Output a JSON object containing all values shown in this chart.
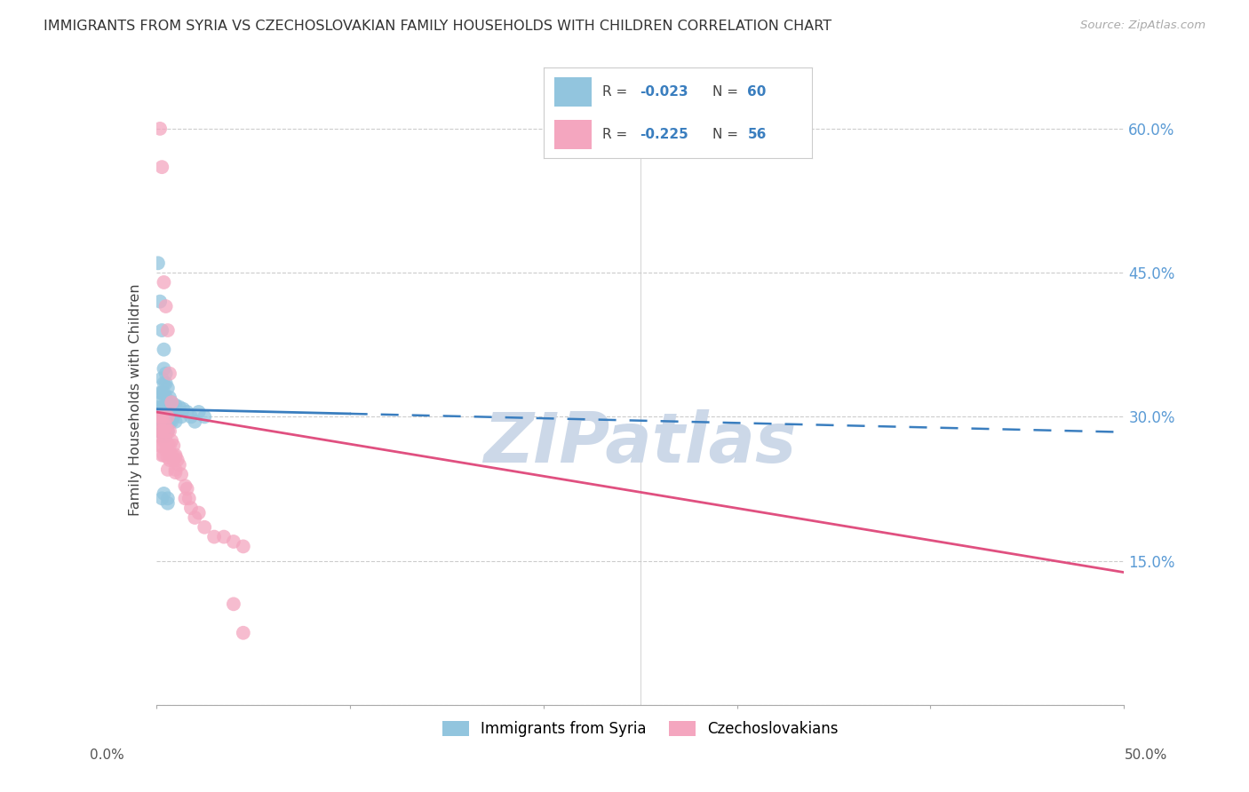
{
  "title": "IMMIGRANTS FROM SYRIA VS CZECHOSLOVAKIAN FAMILY HOUSEHOLDS WITH CHILDREN CORRELATION CHART",
  "source": "Source: ZipAtlas.com",
  "ylabel": "Family Households with Children",
  "legend_blue_label": "Immigrants from Syria",
  "legend_pink_label": "Czechoslovakians",
  "blue_color": "#92c5de",
  "pink_color": "#f4a6bf",
  "trendline_blue_color": "#3a7ebf",
  "trendline_pink_color": "#e05080",
  "watermark": "ZIPatlas",
  "watermark_color": "#ccd8e8",
  "xlim": [
    0.0,
    0.5
  ],
  "ylim": [
    0.0,
    0.635
  ],
  "x_tick_positions": [
    0.0,
    0.1,
    0.2,
    0.3,
    0.4,
    0.5
  ],
  "y_tick_positions": [
    0.0,
    0.15,
    0.3,
    0.45,
    0.6
  ],
  "y_tick_labels_right": [
    "",
    "15.0%",
    "30.0%",
    "45.0%",
    "60.0%"
  ],
  "blue_x": [
    0.001,
    0.001,
    0.001,
    0.002,
    0.002,
    0.002,
    0.002,
    0.002,
    0.003,
    0.003,
    0.003,
    0.003,
    0.003,
    0.003,
    0.004,
    0.004,
    0.004,
    0.004,
    0.004,
    0.004,
    0.004,
    0.005,
    0.005,
    0.005,
    0.005,
    0.005,
    0.005,
    0.005,
    0.006,
    0.006,
    0.006,
    0.006,
    0.006,
    0.007,
    0.007,
    0.007,
    0.008,
    0.008,
    0.008,
    0.009,
    0.009,
    0.01,
    0.01,
    0.011,
    0.012,
    0.013,
    0.014,
    0.016,
    0.018,
    0.02,
    0.022,
    0.025,
    0.001,
    0.002,
    0.003,
    0.004,
    0.006,
    0.006,
    0.004,
    0.003
  ],
  "blue_y": [
    0.305,
    0.295,
    0.31,
    0.325,
    0.315,
    0.3,
    0.29,
    0.285,
    0.34,
    0.325,
    0.31,
    0.295,
    0.285,
    0.305,
    0.35,
    0.335,
    0.325,
    0.31,
    0.3,
    0.29,
    0.28,
    0.345,
    0.335,
    0.32,
    0.31,
    0.3,
    0.29,
    0.28,
    0.33,
    0.315,
    0.305,
    0.295,
    0.285,
    0.32,
    0.308,
    0.295,
    0.315,
    0.305,
    0.295,
    0.31,
    0.3,
    0.312,
    0.295,
    0.305,
    0.31,
    0.3,
    0.308,
    0.305,
    0.3,
    0.295,
    0.305,
    0.3,
    0.46,
    0.42,
    0.39,
    0.37,
    0.215,
    0.21,
    0.22,
    0.215
  ],
  "pink_x": [
    0.001,
    0.001,
    0.002,
    0.002,
    0.002,
    0.003,
    0.003,
    0.003,
    0.003,
    0.004,
    0.004,
    0.004,
    0.004,
    0.005,
    0.005,
    0.005,
    0.006,
    0.006,
    0.006,
    0.006,
    0.006,
    0.007,
    0.007,
    0.007,
    0.008,
    0.008,
    0.009,
    0.009,
    0.01,
    0.01,
    0.01,
    0.01,
    0.011,
    0.012,
    0.013,
    0.015,
    0.015,
    0.016,
    0.017,
    0.018,
    0.02,
    0.022,
    0.025,
    0.03,
    0.035,
    0.04,
    0.045,
    0.002,
    0.003,
    0.004,
    0.005,
    0.006,
    0.007,
    0.008,
    0.04,
    0.045
  ],
  "pink_y": [
    0.3,
    0.285,
    0.295,
    0.28,
    0.27,
    0.3,
    0.285,
    0.27,
    0.26,
    0.295,
    0.285,
    0.275,
    0.26,
    0.29,
    0.275,
    0.265,
    0.3,
    0.285,
    0.27,
    0.258,
    0.245,
    0.285,
    0.27,
    0.255,
    0.275,
    0.26,
    0.27,
    0.255,
    0.26,
    0.245,
    0.258,
    0.242,
    0.255,
    0.25,
    0.24,
    0.228,
    0.215,
    0.225,
    0.215,
    0.205,
    0.195,
    0.2,
    0.185,
    0.175,
    0.175,
    0.17,
    0.165,
    0.6,
    0.56,
    0.44,
    0.415,
    0.39,
    0.345,
    0.315,
    0.105,
    0.075
  ],
  "blue_trend_start_y": 0.308,
  "blue_trend_end_y": 0.284,
  "pink_trend_start_y": 0.305,
  "pink_trend_end_y": 0.138,
  "blue_trend_x_end": 0.1,
  "legend_items": [
    {
      "color": "#92c5de",
      "r_label": "R = ",
      "r_val": "-0.023",
      "n_label": "N = ",
      "n_val": "60"
    },
    {
      "color": "#f4a6bf",
      "r_label": "R = ",
      "r_val": "-0.225",
      "n_label": "N = ",
      "n_val": "56"
    }
  ]
}
